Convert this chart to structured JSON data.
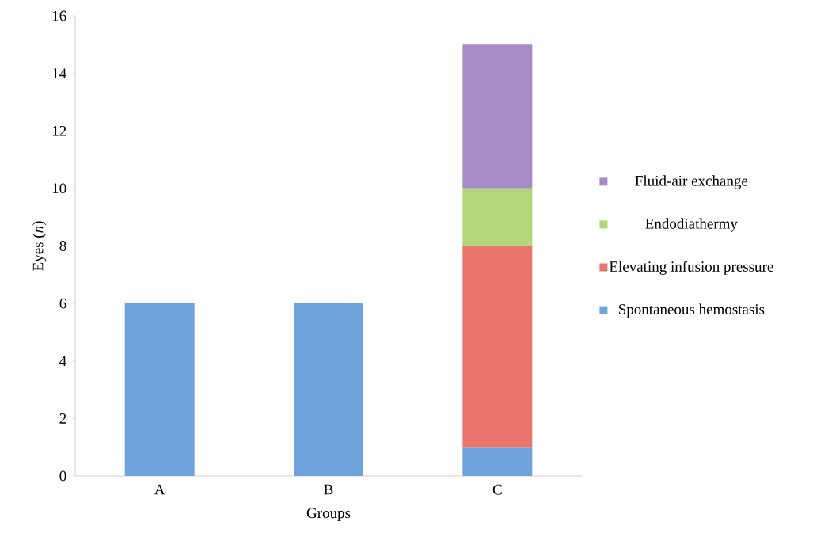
{
  "chart_data": {
    "type": "bar",
    "stacked": true,
    "xlabel": "Groups",
    "ylabel": "Eyes (*n*)",
    "categories": [
      "A",
      "B",
      "C"
    ],
    "series": [
      {
        "name": "Spontaneous hemostasis",
        "color": "#6fa3db",
        "values": [
          6,
          6,
          1
        ]
      },
      {
        "name": "Elevating infusion pressure",
        "color": "#e8766c",
        "values": [
          null,
          null,
          7
        ]
      },
      {
        "name": "Endodiathermy",
        "color": "#b2d67a",
        "values": [
          null,
          null,
          2
        ]
      },
      {
        "name": "Fluid-air exchange",
        "color": "#a98bc6",
        "values": [
          null,
          null,
          5
        ]
      }
    ],
    "ylim": [
      0,
      16
    ],
    "yticks": [
      0,
      2,
      4,
      6,
      8,
      10,
      12,
      14,
      16
    ],
    "grid": false,
    "legend": "right"
  }
}
